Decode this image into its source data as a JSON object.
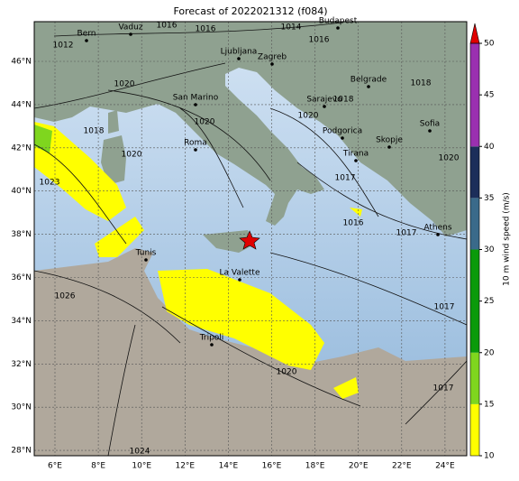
{
  "title": "Forecast of 2022021312 (f084)",
  "lon_ticks": [
    "6°E",
    "8°E",
    "10°E",
    "12°E",
    "14°E",
    "16°E",
    "18°E",
    "20°E",
    "22°E",
    "24°E"
  ],
  "lat_ticks": [
    "46°N",
    "44°N",
    "42°N",
    "40°N",
    "38°N",
    "36°N",
    "34°N",
    "32°N",
    "30°N",
    "28°N"
  ],
  "cities": [
    "Bern",
    "Vaduz",
    "Budapest",
    "Ljubljana",
    "Zagreb",
    "Belgrade",
    "San Marino",
    "Sarajevo",
    "Podgorica",
    "Skopje",
    "Sofia",
    "Roma",
    "Tirana",
    "Athens",
    "Tunis",
    "La Valette",
    "Tripoli"
  ],
  "isobar_labels": [
    "1012",
    "1016",
    "1016",
    "1014",
    "1016",
    "1020",
    "1018",
    "1018",
    "1020",
    "1020",
    "1018",
    "1020",
    "1020",
    "1023",
    "1017",
    "1016",
    "1017",
    "1026",
    "1017",
    "1020",
    "1017",
    "1024"
  ],
  "colorbar": {
    "label": "10 m wind speed (m/s)",
    "ticks": [
      10,
      15,
      20,
      25,
      30,
      35,
      40,
      45,
      50
    ],
    "ylim": [
      10,
      50
    ],
    "bands": [
      {
        "from": 10,
        "to": 15,
        "color": "#ffff00"
      },
      {
        "from": 15,
        "to": 20,
        "color": "#7fd61e"
      },
      {
        "from": 20,
        "to": 30,
        "color": "#0a9a0a"
      },
      {
        "from": 30,
        "to": 35,
        "color": "#3a6a8a"
      },
      {
        "from": 35,
        "to": 40,
        "color": "#1c2e5a"
      },
      {
        "from": 40,
        "to": 50,
        "color": "#9a30b0"
      }
    ],
    "extend_color": "#e00000"
  }
}
